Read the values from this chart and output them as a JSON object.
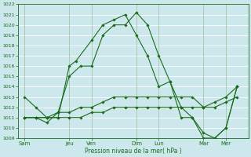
{
  "xlabel": "Pression niveau de la mer( hPa )",
  "background_color": "#cce8ec",
  "grid_color": "#ffffff",
  "line_color": "#1a6b1a",
  "ylim": [
    1009,
    1022
  ],
  "yticks": [
    1009,
    1010,
    1011,
    1012,
    1013,
    1014,
    1015,
    1016,
    1017,
    1018,
    1019,
    1020,
    1021,
    1022
  ],
  "x_labels": [
    "Sam",
    "Jeu",
    "Ven",
    "Dim",
    "Lun",
    "Mar",
    "Mer"
  ],
  "x_positions": [
    0,
    2,
    3,
    5,
    6,
    8,
    9
  ],
  "l1_x": [
    0,
    0.5,
    1,
    1.5,
    2,
    2.3,
    3,
    3.5,
    4,
    4.5,
    5,
    5.5,
    6,
    6.5,
    7,
    7.5,
    8,
    8.5,
    9,
    9.5
  ],
  "l1_y": [
    1013,
    1012,
    1011,
    1011,
    1016,
    1016.5,
    1018.5,
    1020,
    1020.5,
    1021,
    1019,
    1017,
    1014,
    1014.5,
    1011,
    1011,
    1009,
    1009,
    1010,
    1014
  ],
  "l2_x": [
    0,
    0.5,
    1,
    1.5,
    2,
    2.5,
    3,
    3.5,
    4,
    4.5,
    5,
    5.5,
    6,
    6.5,
    7,
    7.5,
    8,
    8.5,
    9,
    9.5
  ],
  "l2_y": [
    1011,
    1011,
    1010.5,
    1011.5,
    1015,
    1016,
    1016,
    1019,
    1020,
    1020,
    1021.2,
    1020,
    1017,
    1014.5,
    1012,
    1011,
    1009.5,
    1009,
    1010,
    1014
  ],
  "l3_x": [
    0,
    0.5,
    1,
    1.5,
    2,
    2.5,
    3,
    3.5,
    4,
    4.5,
    5,
    5.5,
    6,
    6.5,
    7,
    7.5,
    8,
    8.5,
    9,
    9.5
  ],
  "l3_y": [
    1011,
    1011,
    1011,
    1011.5,
    1011.5,
    1012,
    1012,
    1012.5,
    1013,
    1013,
    1013,
    1013,
    1013,
    1013,
    1013,
    1013,
    1012,
    1012.5,
    1013,
    1014
  ],
  "l4_x": [
    0,
    0.5,
    1,
    1.5,
    2,
    2.5,
    3,
    3.5,
    4,
    4.5,
    5,
    5.5,
    6,
    6.5,
    7,
    7.5,
    8,
    8.5,
    9,
    9.5
  ],
  "l4_y": [
    1011,
    1011,
    1011,
    1011,
    1011,
    1011,
    1011.5,
    1011.5,
    1012,
    1012,
    1012,
    1012,
    1012,
    1012,
    1012,
    1012,
    1012,
    1012,
    1012.5,
    1013
  ],
  "ytick_fontsize": 4.5,
  "xtick_fontsize": 5.0,
  "xlabel_fontsize": 5.5,
  "marker_size": 1.8,
  "line_width": 0.8
}
